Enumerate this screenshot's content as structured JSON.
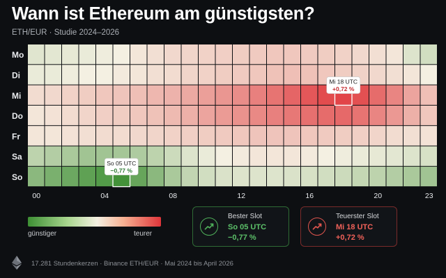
{
  "header": {
    "title": "Wann ist Ethereum am günstigsten?",
    "subtitle": "ETH/EUR · Studie 2024–2026"
  },
  "chart_data": {
    "type": "heatmap",
    "title": "Wann ist Ethereum am günstigsten?",
    "subtitle": "ETH/EUR · Studie 2024–2026",
    "rows": [
      "Mo",
      "Di",
      "Mi",
      "Do",
      "Fr",
      "Sa",
      "So"
    ],
    "columns": [
      "00",
      "01",
      "02",
      "03",
      "04",
      "05",
      "06",
      "07",
      "08",
      "09",
      "10",
      "11",
      "12",
      "13",
      "14",
      "15",
      "16",
      "17",
      "18",
      "19",
      "20",
      "21",
      "22",
      "23"
    ],
    "x_tick_labels": [
      "00",
      "04",
      "08",
      "12",
      "16",
      "20",
      "23"
    ],
    "x_tick_columns": [
      0,
      4,
      8,
      12,
      16,
      20,
      23
    ],
    "value_unit": "%",
    "value_range": [
      -0.8,
      0.8
    ],
    "values": [
      [
        -0.05,
        -0.04,
        -0.03,
        -0.02,
        -0.01,
        0.0,
        0.02,
        0.04,
        0.06,
        0.07,
        0.08,
        0.09,
        0.1,
        0.11,
        0.12,
        0.12,
        0.11,
        0.1,
        0.08,
        0.06,
        0.04,
        0.02,
        -0.06,
        -0.1
      ],
      [
        -0.02,
        -0.02,
        -0.01,
        0.0,
        0.0,
        0.01,
        0.02,
        0.04,
        0.05,
        0.07,
        0.08,
        0.1,
        0.11,
        0.12,
        0.14,
        0.15,
        0.14,
        0.12,
        0.1,
        0.08,
        0.06,
        0.04,
        0.02,
        0.0
      ],
      [
        0.05,
        0.06,
        0.08,
        0.1,
        0.12,
        0.13,
        0.15,
        0.18,
        0.2,
        0.24,
        0.28,
        0.32,
        0.36,
        0.42,
        0.48,
        0.55,
        0.62,
        0.68,
        0.72,
        0.66,
        0.52,
        0.4,
        0.26,
        0.15
      ],
      [
        0.02,
        0.03,
        0.05,
        0.07,
        0.09,
        0.1,
        0.12,
        0.14,
        0.17,
        0.21,
        0.26,
        0.3,
        0.34,
        0.38,
        0.42,
        0.46,
        0.5,
        0.52,
        0.53,
        0.48,
        0.4,
        0.31,
        0.21,
        0.12
      ],
      [
        0.02,
        0.02,
        0.03,
        0.04,
        0.05,
        0.05,
        0.06,
        0.07,
        0.08,
        0.09,
        0.1,
        0.11,
        0.12,
        0.13,
        0.13,
        0.13,
        0.12,
        0.11,
        0.1,
        0.09,
        0.07,
        0.05,
        0.04,
        0.03
      ],
      [
        -0.18,
        -0.22,
        -0.26,
        -0.3,
        -0.3,
        -0.28,
        -0.24,
        -0.18,
        -0.12,
        -0.06,
        -0.02,
        0.0,
        0.01,
        0.02,
        0.02,
        0.02,
        0.01,
        0.0,
        -0.01,
        -0.02,
        -0.03,
        -0.04,
        -0.06,
        -0.08
      ],
      [
        -0.4,
        -0.48,
        -0.55,
        -0.62,
        -0.68,
        -0.77,
        -0.58,
        -0.4,
        -0.26,
        -0.16,
        -0.1,
        -0.07,
        -0.06,
        -0.06,
        -0.06,
        -0.07,
        -0.08,
        -0.1,
        -0.12,
        -0.15,
        -0.18,
        -0.22,
        -0.26,
        -0.3
      ]
    ],
    "annotations": [
      {
        "label": "Mi 18 UTC",
        "value": "+0,72 %",
        "row": 2,
        "col": 18
      },
      {
        "label": "So 05 UTC",
        "value": "−0,77 %",
        "row": 6,
        "col": 5
      }
    ],
    "legend": {
      "low_label": "günstiger",
      "high_label": "teurer"
    }
  },
  "cards": {
    "best": {
      "title": "Bester Slot",
      "slot": "So 05 UTC",
      "value": "−0,77 %"
    },
    "worst": {
      "title": "Teuerster Slot",
      "slot": "Mi 18 UTC",
      "value": "+0,72 %"
    }
  },
  "footer": {
    "text": "17.281 Stundenkerzen · Binance ETH/EUR · Mai 2024 bis April 2026"
  },
  "icons": {
    "best": "trend-up-icon",
    "worst": "trend-up-icon",
    "logo": "ethereum-logo-icon"
  },
  "colors": {
    "low": "#3d8f34",
    "mid": "#f4f0e2",
    "high": "#e0353a",
    "best_accent": "#5cc069",
    "worst_accent": "#ef6159"
  }
}
